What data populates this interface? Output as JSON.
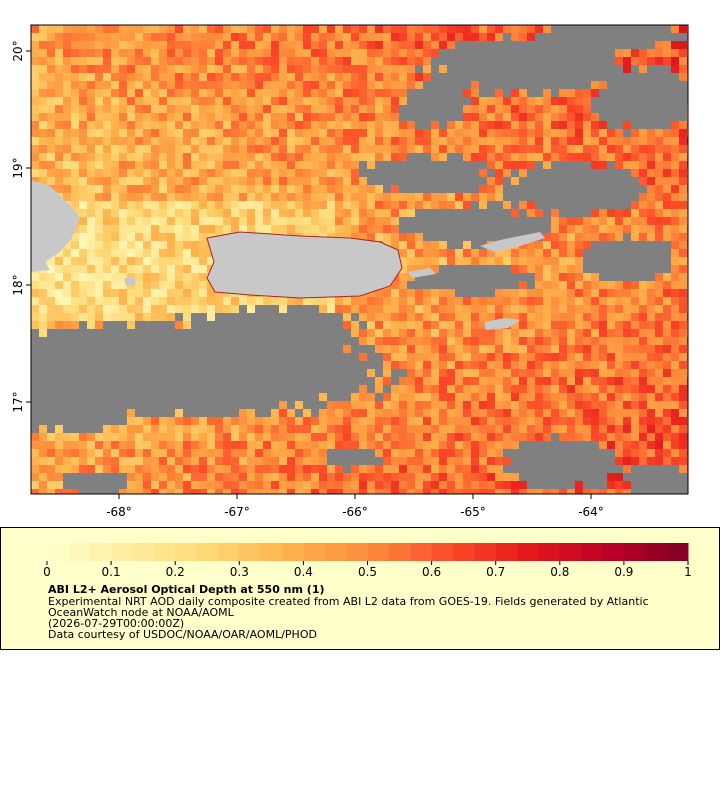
{
  "map": {
    "xticks": [
      {
        "value": -68,
        "label": "-68°"
      },
      {
        "value": -67,
        "label": "-67°"
      },
      {
        "value": -66,
        "label": "-66°"
      },
      {
        "value": -65,
        "label": "-65°"
      },
      {
        "value": -64,
        "label": "-64°"
      }
    ],
    "yticks": [
      {
        "value": 20,
        "label": "20°"
      },
      {
        "value": 19,
        "label": "19°"
      },
      {
        "value": 18,
        "label": "18°"
      },
      {
        "value": 17,
        "label": "17°"
      }
    ]
  },
  "legend": {
    "title": "ABI L2+ Aerosol Optical Depth at 550 nm (1)",
    "lines": [
      "Experimental NRT AOD daily composite created from ABI L2 data from GOES-19. Fields generated by Atlantic",
      "OceanWatch node at NOAA/AOML",
      "(2026-07-29T00:00:00Z)",
      "Data courtesy of USDOC/NOAA/OAR/AOML/PHOD"
    ],
    "range": [
      0,
      1
    ],
    "ticks": [
      0,
      0.1,
      0.2,
      0.3,
      0.4,
      0.5,
      0.6,
      0.7,
      0.8,
      0.9,
      1
    ],
    "colors": [
      "#ffffcc",
      "#ffeda0",
      "#fed976",
      "#feb24c",
      "#fd8d3c",
      "#fc4e2a",
      "#e31a1c",
      "#bd0026",
      "#800026"
    ]
  }
}
